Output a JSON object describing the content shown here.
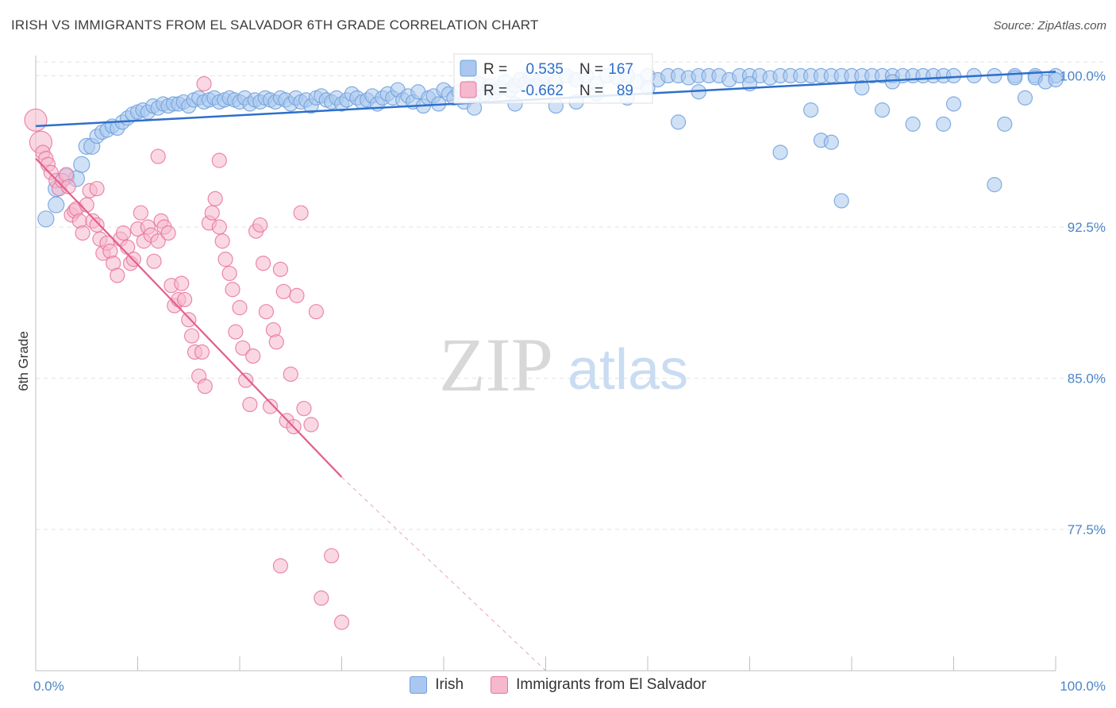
{
  "header": {
    "title": "IRISH VS IMMIGRANTS FROM EL SALVADOR 6TH GRADE CORRELATION CHART",
    "source": "Source: ZipAtlas.com"
  },
  "watermark": {
    "zip": "ZIP",
    "atlas": "atlas"
  },
  "chart_data": {
    "type": "scatter",
    "title": "IRISH VS IMMIGRANTS FROM EL SALVADOR 6TH GRADE CORRELATION CHART",
    "xlabel": "",
    "ylabel": "6th Grade",
    "xlim": [
      0,
      100
    ],
    "ylim": [
      70.5,
      101
    ],
    "x_tick_labels": [
      "0.0%",
      "100.0%"
    ],
    "y_ticks": [
      100,
      92.5,
      85,
      77.5
    ],
    "y_tick_labels": [
      "100.0%",
      "92.5%",
      "85.0%",
      "77.5%"
    ],
    "grid": true,
    "legend_position": "top-center",
    "legend": [
      {
        "name": "Irish",
        "r_label": "R =",
        "r": "0.535",
        "n_label": "N =",
        "n": "167",
        "color": "#6fa0dc",
        "fill": "#aac8ef"
      },
      {
        "name": "Immigrants from El Salvador",
        "r_label": "R =",
        "r": "-0.662",
        "n_label": "N =",
        "n": "89",
        "color": "#e7749c",
        "fill": "#f6b8cc"
      }
    ],
    "series": [
      {
        "name": "Irish",
        "color": "#6fa0dc",
        "trend": {
          "x": [
            0,
            100
          ],
          "y": [
            97.5,
            100.2
          ],
          "color": "#2e6fcb"
        },
        "points": [
          [
            1,
            92.9
          ],
          [
            2,
            93.6
          ],
          [
            2,
            94.4
          ],
          [
            3,
            95
          ],
          [
            4,
            94.9
          ],
          [
            4.5,
            95.6
          ],
          [
            5,
            96.5
          ],
          [
            5.5,
            96.5
          ],
          [
            6,
            97
          ],
          [
            6.5,
            97.2
          ],
          [
            7,
            97.3
          ],
          [
            7.5,
            97.5
          ],
          [
            8,
            97.4
          ],
          [
            8.5,
            97.7
          ],
          [
            9,
            97.9
          ],
          [
            9.5,
            98.1
          ],
          [
            10,
            98.2
          ],
          [
            10.5,
            98.3
          ],
          [
            11,
            98.2
          ],
          [
            11.5,
            98.5
          ],
          [
            12,
            98.4
          ],
          [
            12.5,
            98.6
          ],
          [
            13,
            98.5
          ],
          [
            13.5,
            98.6
          ],
          [
            14,
            98.6
          ],
          [
            14.5,
            98.7
          ],
          [
            15,
            98.5
          ],
          [
            15.5,
            98.8
          ],
          [
            16,
            98.9
          ],
          [
            16.5,
            98.7
          ],
          [
            17,
            98.8
          ],
          [
            17.5,
            98.9
          ],
          [
            18,
            98.7
          ],
          [
            18.5,
            98.8
          ],
          [
            19,
            98.9
          ],
          [
            19.5,
            98.8
          ],
          [
            20,
            98.7
          ],
          [
            20.5,
            98.9
          ],
          [
            21,
            98.6
          ],
          [
            21.5,
            98.8
          ],
          [
            22,
            98.7
          ],
          [
            22.5,
            98.9
          ],
          [
            23,
            98.8
          ],
          [
            23.5,
            98.7
          ],
          [
            24,
            98.9
          ],
          [
            24.5,
            98.8
          ],
          [
            25,
            98.6
          ],
          [
            25.5,
            98.9
          ],
          [
            26,
            98.7
          ],
          [
            26.5,
            98.8
          ],
          [
            27,
            98.5
          ],
          [
            27.5,
            98.9
          ],
          [
            28,
            99
          ],
          [
            28.5,
            98.8
          ],
          [
            29,
            98.7
          ],
          [
            29.5,
            98.9
          ],
          [
            30,
            98.6
          ],
          [
            30.5,
            98.8
          ],
          [
            31,
            99.1
          ],
          [
            31.5,
            98.9
          ],
          [
            32,
            98.7
          ],
          [
            32.5,
            98.8
          ],
          [
            33,
            99
          ],
          [
            33.5,
            98.6
          ],
          [
            34,
            98.9
          ],
          [
            34.5,
            99.1
          ],
          [
            35,
            98.9
          ],
          [
            35.5,
            99.3
          ],
          [
            36,
            98.8
          ],
          [
            36.5,
            99
          ],
          [
            37,
            98.7
          ],
          [
            37.5,
            99.2
          ],
          [
            38,
            98.5
          ],
          [
            38.5,
            98.9
          ],
          [
            39,
            99
          ],
          [
            39.5,
            98.6
          ],
          [
            40,
            99.3
          ],
          [
            40.5,
            99.1
          ],
          [
            41,
            98.9
          ],
          [
            41.5,
            99.2
          ],
          [
            42,
            98.7
          ],
          [
            42.5,
            99.4
          ],
          [
            43,
            99
          ],
          [
            43.5,
            99.6
          ],
          [
            44,
            99.1
          ],
          [
            44.5,
            99.5
          ],
          [
            45,
            99.2
          ],
          [
            45.5,
            99.4
          ],
          [
            46,
            99.7
          ],
          [
            46.5,
            99.3
          ],
          [
            47,
            99.5
          ],
          [
            47.5,
            99.8
          ],
          [
            48,
            99.6
          ],
          [
            48.5,
            99.9
          ],
          [
            49,
            99.5
          ],
          [
            49.5,
            99.8
          ],
          [
            50,
            100
          ],
          [
            51,
            99.7
          ],
          [
            52,
            100
          ],
          [
            53,
            99.8
          ],
          [
            54,
            100
          ],
          [
            55,
            99.6
          ],
          [
            56,
            100
          ],
          [
            57,
            99.9
          ],
          [
            58,
            100
          ],
          [
            59,
            99.7
          ],
          [
            60,
            100
          ],
          [
            61,
            99.8
          ],
          [
            62,
            100
          ],
          [
            63,
            100
          ],
          [
            64,
            99.9
          ],
          [
            65,
            100
          ],
          [
            66,
            100
          ],
          [
            67,
            100
          ],
          [
            68,
            99.8
          ],
          [
            69,
            100
          ],
          [
            70,
            100
          ],
          [
            71,
            100
          ],
          [
            72,
            99.9
          ],
          [
            73,
            100
          ],
          [
            74,
            100
          ],
          [
            75,
            100
          ],
          [
            76,
            100
          ],
          [
            77,
            100
          ],
          [
            78,
            100
          ],
          [
            79,
            100
          ],
          [
            80,
            100
          ],
          [
            81,
            100
          ],
          [
            82,
            100
          ],
          [
            83,
            100
          ],
          [
            84,
            100
          ],
          [
            85,
            100
          ],
          [
            86,
            100
          ],
          [
            87,
            100
          ],
          [
            88,
            100
          ],
          [
            89,
            100
          ],
          [
            90,
            100
          ],
          [
            92,
            100
          ],
          [
            94,
            100
          ],
          [
            96,
            100
          ],
          [
            98,
            100
          ],
          [
            100,
            100
          ],
          [
            43,
            98.4
          ],
          [
            47,
            98.6
          ],
          [
            51,
            98.5
          ],
          [
            53,
            98.7
          ],
          [
            55,
            99.1
          ],
          [
            58,
            98.9
          ],
          [
            60,
            99.4
          ],
          [
            63,
            97.7
          ],
          [
            65,
            99.2
          ],
          [
            70,
            99.6
          ],
          [
            73,
            96.2
          ],
          [
            76,
            98.3
          ],
          [
            77,
            96.8
          ],
          [
            78,
            96.7
          ],
          [
            79,
            93.8
          ],
          [
            81,
            99.4
          ],
          [
            83,
            98.3
          ],
          [
            84,
            99.7
          ],
          [
            86,
            97.6
          ],
          [
            89,
            97.6
          ],
          [
            90,
            98.6
          ],
          [
            94,
            94.6
          ],
          [
            96,
            99.9
          ],
          [
            98,
            99.9
          ],
          [
            99,
            99.7
          ],
          [
            100,
            99.8
          ],
          [
            95,
            97.6
          ],
          [
            97,
            98.9
          ]
        ]
      },
      {
        "name": "Immigrants from El Salvador",
        "color": "#e7749c",
        "trend": {
          "x": [
            0,
            30
          ],
          "y": [
            95.9,
            80.1
          ],
          "dash_to": [
            50,
            70.5
          ],
          "color": "#e25f8e"
        },
        "points": [
          [
            0,
            97.8
          ],
          [
            0.5,
            96.7
          ],
          [
            0.7,
            96.2
          ],
          [
            1,
            95.9
          ],
          [
            1.2,
            95.6
          ],
          [
            1.5,
            95.2
          ],
          [
            2,
            94.8
          ],
          [
            2.3,
            94.4
          ],
          [
            2.6,
            94.8
          ],
          [
            3,
            95.1
          ],
          [
            3.2,
            94.5
          ],
          [
            3.5,
            93.1
          ],
          [
            3.8,
            93.3
          ],
          [
            4,
            93.4
          ],
          [
            4.3,
            92.8
          ],
          [
            4.6,
            92.2
          ],
          [
            5,
            93.6
          ],
          [
            5.3,
            94.3
          ],
          [
            5.6,
            92.8
          ],
          [
            6,
            92.6
          ],
          [
            6.3,
            91.9
          ],
          [
            6.6,
            91.2
          ],
          [
            7,
            91.7
          ],
          [
            7.3,
            91.3
          ],
          [
            7.6,
            90.7
          ],
          [
            8,
            90.1
          ],
          [
            8.3,
            91.9
          ],
          [
            8.6,
            92.2
          ],
          [
            9,
            91.5
          ],
          [
            9.3,
            90.7
          ],
          [
            9.6,
            90.9
          ],
          [
            10,
            92.4
          ],
          [
            10.3,
            93.2
          ],
          [
            10.6,
            91.8
          ],
          [
            11,
            92.5
          ],
          [
            11.3,
            92.1
          ],
          [
            11.6,
            90.8
          ],
          [
            12,
            91.8
          ],
          [
            12.3,
            92.8
          ],
          [
            12.6,
            92.5
          ],
          [
            13,
            92.2
          ],
          [
            13.3,
            89.6
          ],
          [
            13.6,
            88.6
          ],
          [
            14,
            88.9
          ],
          [
            14.3,
            89.7
          ],
          [
            14.6,
            88.9
          ],
          [
            15,
            87.9
          ],
          [
            15.3,
            87.1
          ],
          [
            15.6,
            86.3
          ],
          [
            16,
            85.1
          ],
          [
            16.3,
            86.3
          ],
          [
            16.6,
            84.6
          ],
          [
            17,
            92.7
          ],
          [
            17.3,
            93.2
          ],
          [
            17.6,
            93.9
          ],
          [
            18,
            92.5
          ],
          [
            18.3,
            91.8
          ],
          [
            18.6,
            90.9
          ],
          [
            19,
            90.2
          ],
          [
            19.3,
            89.4
          ],
          [
            19.6,
            87.3
          ],
          [
            20,
            88.5
          ],
          [
            20.3,
            86.5
          ],
          [
            20.6,
            84.9
          ],
          [
            21,
            83.7
          ],
          [
            21.3,
            86.1
          ],
          [
            21.6,
            92.3
          ],
          [
            22,
            92.6
          ],
          [
            22.3,
            90.7
          ],
          [
            22.6,
            88.3
          ],
          [
            23,
            83.6
          ],
          [
            23.3,
            87.4
          ],
          [
            23.6,
            86.8
          ],
          [
            24,
            90.4
          ],
          [
            24.3,
            89.3
          ],
          [
            24.6,
            82.9
          ],
          [
            25,
            85.2
          ],
          [
            25.3,
            82.6
          ],
          [
            25.6,
            89.1
          ],
          [
            26,
            93.2
          ],
          [
            26.3,
            83.5
          ],
          [
            27,
            82.7
          ],
          [
            27.5,
            88.3
          ],
          [
            12,
            96
          ],
          [
            16.5,
            99.6
          ],
          [
            18,
            95.8
          ],
          [
            24,
            75.7
          ],
          [
            28,
            74.1
          ],
          [
            30,
            72.9
          ],
          [
            29,
            76.2
          ],
          [
            6,
            94.4
          ]
        ]
      }
    ]
  }
}
